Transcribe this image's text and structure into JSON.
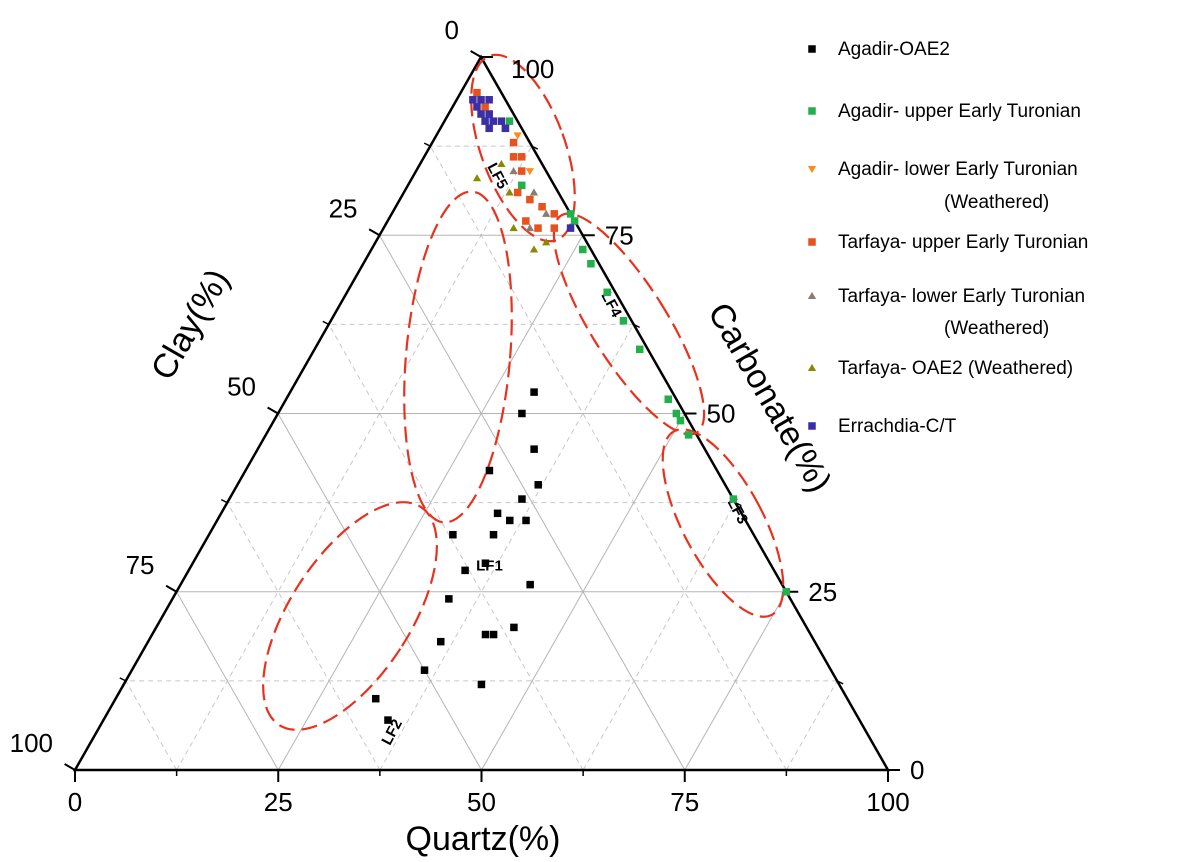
{
  "chart_data": {
    "type": "scatter",
    "subtype": "ternary",
    "axes": {
      "quartz": {
        "label": "Quartz(%)",
        "ticks": [
          "0",
          "25",
          "50",
          "75",
          "100"
        ]
      },
      "clay": {
        "label": "Clay(%)",
        "ticks": [
          "0",
          "25",
          "50",
          "75",
          "100"
        ]
      },
      "carbonate": {
        "label": "Carbonate(%)",
        "ticks": [
          "100",
          "75",
          "50",
          "25",
          "0"
        ]
      }
    },
    "range": [
      0,
      100
    ],
    "grid": true,
    "legend_position": "top-right",
    "series": [
      {
        "name": "Agadir-OAE2",
        "color": "#000000",
        "marker": "square",
        "points": [
          {
            "quartz": 30,
            "clay": 17,
            "carbonate": 53
          },
          {
            "quartz": 30,
            "clay": 20,
            "carbonate": 50
          },
          {
            "quartz": 34,
            "clay": 21,
            "carbonate": 45
          },
          {
            "quartz": 36,
            "clay": 26,
            "carbonate": 38
          },
          {
            "quartz": 38,
            "clay": 27,
            "carbonate": 35
          },
          {
            "quartz": 35,
            "clay": 32,
            "carbonate": 33
          },
          {
            "quartz": 30,
            "clay": 37,
            "carbonate": 33
          },
          {
            "quartz": 34,
            "clay": 42,
            "carbonate": 24
          },
          {
            "quartz": 36,
            "clay": 46,
            "carbonate": 18
          },
          {
            "quartz": 36,
            "clay": 50,
            "carbonate": 14
          },
          {
            "quartz": 44,
            "clay": 44,
            "carbonate": 12
          },
          {
            "quartz": 34,
            "clay": 38,
            "carbonate": 28
          },
          {
            "quartz": 42,
            "clay": 39,
            "carbonate": 19
          },
          {
            "quartz": 35,
            "clay": 58,
            "carbonate": 7
          },
          {
            "quartz": 32,
            "clay": 58,
            "carbonate": 10
          },
          {
            "quartz": 36,
            "clay": 35,
            "carbonate": 29
          },
          {
            "quartz": 36,
            "clay": 29,
            "carbonate": 35
          },
          {
            "quartz": 34,
            "clay": 30,
            "carbonate": 36
          },
          {
            "quartz": 30,
            "clay": 28,
            "carbonate": 42
          },
          {
            "quartz": 37,
            "clay": 23,
            "carbonate": 40
          },
          {
            "quartz": 41,
            "clay": 40,
            "carbonate": 19
          },
          {
            "quartz": 44,
            "clay": 36,
            "carbonate": 20
          },
          {
            "quartz": 43,
            "clay": 31,
            "carbonate": 26
          }
        ]
      },
      {
        "name": "Agadir- upper Early Turonian",
        "color": "#21b04b",
        "marker": "square",
        "points": [
          {
            "quartz": 22,
            "clay": 0,
            "carbonate": 78
          },
          {
            "quartz": 23,
            "clay": 0,
            "carbonate": 77
          },
          {
            "quartz": 26,
            "clay": 1,
            "carbonate": 73
          },
          {
            "quartz": 28,
            "clay": 1,
            "carbonate": 71
          },
          {
            "quartz": 32,
            "clay": 1,
            "carbonate": 67
          },
          {
            "quartz": 36,
            "clay": 1,
            "carbonate": 63
          },
          {
            "quartz": 40,
            "clay": 1,
            "carbonate": 59
          },
          {
            "quartz": 47,
            "clay": 1,
            "carbonate": 52
          },
          {
            "quartz": 49,
            "clay": 1,
            "carbonate": 50
          },
          {
            "quartz": 50,
            "clay": 1,
            "carbonate": 49
          },
          {
            "quartz": 52,
            "clay": 1,
            "carbonate": 47
          },
          {
            "quartz": 62,
            "clay": 0,
            "carbonate": 38
          },
          {
            "quartz": 75,
            "clay": 0,
            "carbonate": 25
          },
          {
            "quartz": 8,
            "clay": 1,
            "carbonate": 91
          },
          {
            "quartz": 14,
            "clay": 4,
            "carbonate": 82
          }
        ]
      },
      {
        "name": "Agadir- lower Early Turonian (Weathered)",
        "color": "#ff8c1a",
        "marker": "triangle-down",
        "points": [
          {
            "quartz": 10,
            "clay": 1,
            "carbonate": 89
          },
          {
            "quartz": 14,
            "clay": 2,
            "carbonate": 84
          }
        ]
      },
      {
        "name": "Tarfaya- upper Early Turonian",
        "color": "#e8521e",
        "marker": "square",
        "points": [
          {
            "quartz": 2,
            "clay": 3,
            "carbonate": 95
          },
          {
            "quartz": 4,
            "clay": 3,
            "carbonate": 93
          },
          {
            "quartz": 5,
            "clay": 3,
            "carbonate": 92
          },
          {
            "quartz": 8,
            "clay": 2,
            "carbonate": 90
          },
          {
            "quartz": 10,
            "clay": 2,
            "carbonate": 88
          },
          {
            "quartz": 11,
            "clay": 3,
            "carbonate": 86
          },
          {
            "quartz": 12,
            "clay": 2,
            "carbonate": 86
          },
          {
            "quartz": 13,
            "clay": 3,
            "carbonate": 84
          },
          {
            "quartz": 16,
            "clay": 4,
            "carbonate": 80
          },
          {
            "quartz": 18,
            "clay": 3,
            "carbonate": 79
          },
          {
            "quartz": 20,
            "clay": 2,
            "carbonate": 78
          },
          {
            "quartz": 21,
            "clay": 3,
            "carbonate": 76
          },
          {
            "quartz": 17,
            "clay": 6,
            "carbonate": 77
          },
          {
            "quartz": 19,
            "clay": 5,
            "carbonate": 76
          },
          {
            "quartz": 14,
            "clay": 5,
            "carbonate": 81
          }
        ]
      },
      {
        "name": "Tarfaya- lower Early Turonian (Weathered)",
        "color": "#8c7b70",
        "marker": "triangle",
        "points": [
          {
            "quartz": 16,
            "clay": 3,
            "carbonate": 81
          },
          {
            "quartz": 19,
            "clay": 3,
            "carbonate": 78
          },
          {
            "quartz": 18,
            "clay": 6,
            "carbonate": 76
          },
          {
            "quartz": 12,
            "clay": 4,
            "carbonate": 84
          }
        ]
      },
      {
        "name": "Tarfaya- OAE2 (Weathered)",
        "color": "#8a8a00",
        "marker": "triangle",
        "points": [
          {
            "quartz": 8,
            "clay": 9,
            "carbonate": 83
          },
          {
            "quartz": 13,
            "clay": 6,
            "carbonate": 81
          },
          {
            "quartz": 16,
            "clay": 8,
            "carbonate": 76
          },
          {
            "quartz": 20,
            "clay": 7,
            "carbonate": 73
          },
          {
            "quartz": 21,
            "clay": 5,
            "carbonate": 74
          },
          {
            "quartz": 10,
            "clay": 5,
            "carbonate": 85
          }
        ]
      },
      {
        "name": "Errachdia-C/T",
        "color": "#3a2fa6",
        "marker": "square",
        "points": [
          {
            "quartz": 2,
            "clay": 4,
            "carbonate": 94
          },
          {
            "quartz": 3,
            "clay": 4,
            "carbonate": 93
          },
          {
            "quartz": 4,
            "clay": 4,
            "carbonate": 92
          },
          {
            "quartz": 5,
            "clay": 4,
            "carbonate": 91
          },
          {
            "quartz": 5,
            "clay": 3,
            "carbonate": 92
          },
          {
            "quartz": 6,
            "clay": 3,
            "carbonate": 91
          },
          {
            "quartz": 7,
            "clay": 2,
            "carbonate": 91
          },
          {
            "quartz": 8,
            "clay": 2,
            "carbonate": 90
          },
          {
            "quartz": 3,
            "clay": 3,
            "carbonate": 94
          },
          {
            "quartz": 4,
            "clay": 2,
            "carbonate": 94
          },
          {
            "quartz": 6,
            "clay": 4,
            "carbonate": 90
          },
          {
            "quartz": 23,
            "clay": 1,
            "carbonate": 76
          }
        ]
      }
    ],
    "fields": [
      {
        "label": "LF1",
        "quartz": 37,
        "clay": 35,
        "carbonate": 28
      },
      {
        "label": "LF2",
        "quartz": 37,
        "clay": 58,
        "carbonate": 5
      },
      {
        "label": "LF3",
        "quartz": 63,
        "clay": 1,
        "carbonate": 36
      },
      {
        "label": "LF4",
        "quartz": 33,
        "clay": 2,
        "carbonate": 65
      },
      {
        "label": "LF5",
        "quartz": 10,
        "clay": 7,
        "carbonate": 83
      }
    ]
  }
}
